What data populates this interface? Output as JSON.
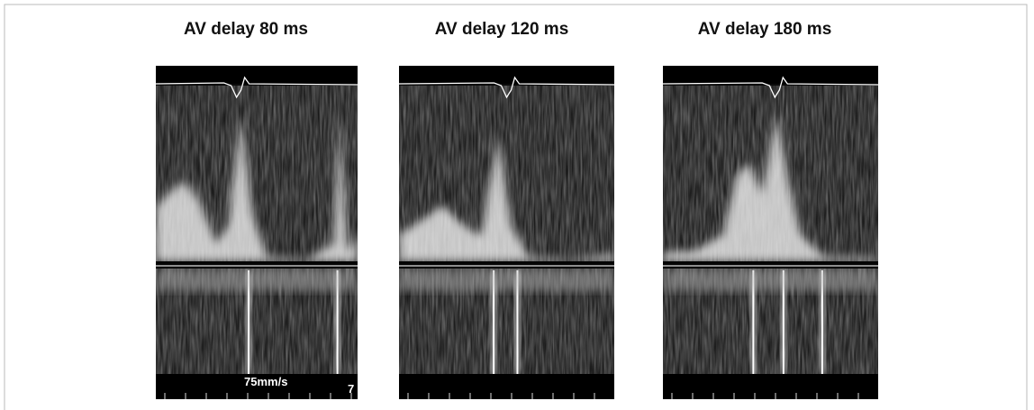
{
  "panels": [
    {
      "title": "AV delay 80 ms",
      "speed_label": "75mm/s",
      "edge_label": "7"
    },
    {
      "title": "AV delay 120 ms"
    },
    {
      "title": "AV delay 180 ms"
    }
  ]
}
